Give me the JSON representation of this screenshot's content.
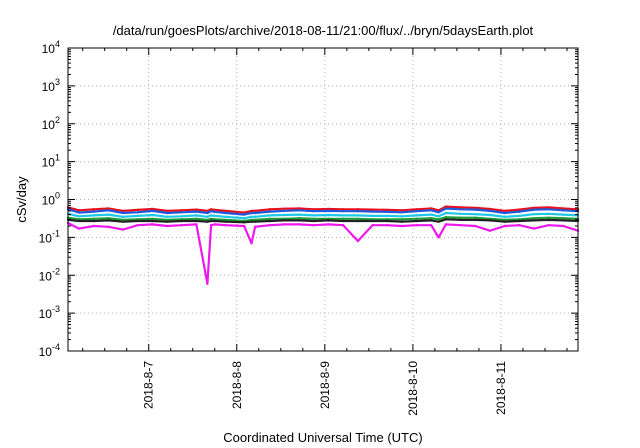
{
  "chart_data": {
    "type": "line",
    "title": "/data/run/goesPlots/archive/2018-08-11/21:00/flux/../bryn/5daysEarth.plot",
    "xlabel": "Coordinated Universal Time (UTC)",
    "ylabel": "cSv/day",
    "yscale": "log",
    "ylim": [
      0.0001,
      10000
    ],
    "xlim": [
      "2018-08-06 02:00",
      "2018-08-11 21:00"
    ],
    "grid": true,
    "yticks": [
      {
        "value": 0.0001,
        "base": "10",
        "exp": "-4"
      },
      {
        "value": 0.001,
        "base": "10",
        "exp": "-3"
      },
      {
        "value": 0.01,
        "base": "10",
        "exp": "-2"
      },
      {
        "value": 0.1,
        "base": "10",
        "exp": "-1"
      },
      {
        "value": 1,
        "base": "10",
        "exp": "0"
      },
      {
        "value": 10,
        "base": "10",
        "exp": "1"
      },
      {
        "value": 100,
        "base": "10",
        "exp": "2"
      },
      {
        "value": 1000,
        "base": "10",
        "exp": "3"
      },
      {
        "value": 10000,
        "base": "10",
        "exp": "4"
      }
    ],
    "xticks": [
      {
        "value": "2018-08-07 00:00",
        "label": "2018-8-7"
      },
      {
        "value": "2018-08-08 00:00",
        "label": "2018-8-8"
      },
      {
        "value": "2018-08-09 00:00",
        "label": "2018-8-9"
      },
      {
        "value": "2018-08-10 00:00",
        "label": "2018-8-10"
      },
      {
        "value": "2018-08-11 00:00",
        "label": "2018-8-11"
      }
    ],
    "x": [
      "2018-08-06 02:00",
      "2018-08-06 05:00",
      "2018-08-06 09:00",
      "2018-08-06 13:00",
      "2018-08-06 17:00",
      "2018-08-06 21:00",
      "2018-08-07 01:00",
      "2018-08-07 05:00",
      "2018-08-07 09:00",
      "2018-08-07 13:00",
      "2018-08-07 16:00",
      "2018-08-07 17:00",
      "2018-08-07 18:00",
      "2018-08-07 21:00",
      "2018-08-08 02:00",
      "2018-08-08 04:00",
      "2018-08-08 05:00",
      "2018-08-08 09:00",
      "2018-08-08 13:00",
      "2018-08-08 17:00",
      "2018-08-08 21:00",
      "2018-08-09 01:00",
      "2018-08-09 05:00",
      "2018-08-09 09:00",
      "2018-08-09 13:00",
      "2018-08-09 17:00",
      "2018-08-09 21:00",
      "2018-08-10 01:00",
      "2018-08-10 05:00",
      "2018-08-10 07:00",
      "2018-08-10 09:00",
      "2018-08-10 13:00",
      "2018-08-10 17:00",
      "2018-08-10 21:00",
      "2018-08-11 01:00",
      "2018-08-11 05:00",
      "2018-08-11 09:00",
      "2018-08-11 13:00",
      "2018-08-11 17:00",
      "2018-08-11 21:00"
    ],
    "series": [
      {
        "color": "#e8101c",
        "values": [
          0.62,
          0.52,
          0.55,
          0.58,
          0.5,
          0.53,
          0.56,
          0.5,
          0.52,
          0.54,
          0.5,
          0.55,
          0.53,
          0.5,
          0.45,
          0.5,
          0.5,
          0.55,
          0.57,
          0.58,
          0.55,
          0.56,
          0.55,
          0.55,
          0.54,
          0.53,
          0.52,
          0.55,
          0.58,
          0.52,
          0.65,
          0.62,
          0.6,
          0.56,
          0.5,
          0.54,
          0.6,
          0.62,
          0.58,
          0.55
        ]
      },
      {
        "color": "#1e5bdc",
        "values": [
          0.55,
          0.45,
          0.48,
          0.52,
          0.44,
          0.46,
          0.5,
          0.44,
          0.46,
          0.48,
          0.44,
          0.49,
          0.47,
          0.44,
          0.4,
          0.44,
          0.44,
          0.48,
          0.5,
          0.52,
          0.49,
          0.5,
          0.49,
          0.49,
          0.48,
          0.47,
          0.46,
          0.49,
          0.52,
          0.46,
          0.58,
          0.55,
          0.54,
          0.5,
          0.44,
          0.48,
          0.54,
          0.55,
          0.52,
          0.49
        ]
      },
      {
        "color": "#1ec8e6",
        "values": [
          0.42,
          0.36,
          0.38,
          0.4,
          0.35,
          0.37,
          0.39,
          0.35,
          0.36,
          0.38,
          0.35,
          0.38,
          0.37,
          0.35,
          0.32,
          0.35,
          0.35,
          0.38,
          0.39,
          0.4,
          0.38,
          0.39,
          0.38,
          0.38,
          0.37,
          0.37,
          0.36,
          0.38,
          0.4,
          0.36,
          0.44,
          0.42,
          0.41,
          0.39,
          0.35,
          0.37,
          0.41,
          0.42,
          0.4,
          0.38
        ]
      },
      {
        "color": "#1f9e3c",
        "values": [
          0.33,
          0.3,
          0.31,
          0.32,
          0.29,
          0.3,
          0.31,
          0.29,
          0.3,
          0.31,
          0.29,
          0.31,
          0.3,
          0.29,
          0.27,
          0.29,
          0.29,
          0.31,
          0.31,
          0.32,
          0.31,
          0.31,
          0.31,
          0.31,
          0.3,
          0.3,
          0.3,
          0.31,
          0.32,
          0.3,
          0.34,
          0.33,
          0.33,
          0.31,
          0.29,
          0.3,
          0.32,
          0.33,
          0.32,
          0.31
        ]
      },
      {
        "color": "#222222",
        "values": [
          0.29,
          0.27,
          0.27,
          0.28,
          0.26,
          0.27,
          0.27,
          0.26,
          0.27,
          0.27,
          0.26,
          0.27,
          0.27,
          0.26,
          0.25,
          0.26,
          0.26,
          0.27,
          0.28,
          0.28,
          0.27,
          0.28,
          0.27,
          0.27,
          0.27,
          0.27,
          0.26,
          0.27,
          0.28,
          0.26,
          0.3,
          0.29,
          0.29,
          0.28,
          0.26,
          0.27,
          0.28,
          0.29,
          0.28,
          0.27
        ]
      },
      {
        "color": "#ee18ee",
        "values": [
          0.24,
          0.17,
          0.2,
          0.19,
          0.16,
          0.21,
          0.22,
          0.2,
          0.21,
          0.22,
          0.006,
          0.21,
          0.22,
          0.21,
          0.2,
          0.07,
          0.19,
          0.21,
          0.22,
          0.22,
          0.21,
          0.22,
          0.21,
          0.08,
          0.21,
          0.21,
          0.2,
          0.21,
          0.21,
          0.1,
          0.22,
          0.21,
          0.2,
          0.15,
          0.2,
          0.21,
          0.17,
          0.21,
          0.2,
          0.15
        ]
      }
    ]
  }
}
